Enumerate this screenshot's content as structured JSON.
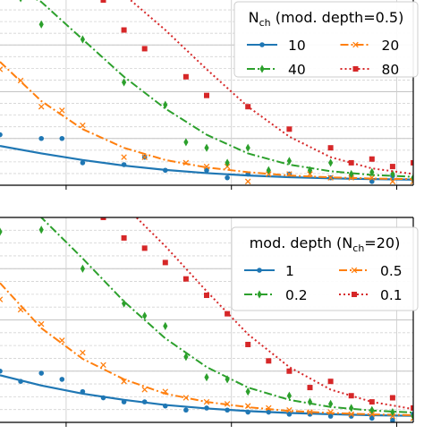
{
  "chart_data": [
    {
      "type": "line",
      "title": "",
      "xlabel": "",
      "ylabel": "",
      "xlim": [
        0,
        1
      ],
      "ylim": [
        0,
        1
      ],
      "grid": true,
      "legend": {
        "title": "N_ch (mod. depth=0.5)",
        "title_parts": {
          "base": "N",
          "sub": "ch",
          "rest": " (mod. depth=0.5)"
        },
        "placement": "top-right",
        "columns": 2
      },
      "series": [
        {
          "name": "10",
          "color": "#1f77b4",
          "line_style": "solid",
          "marker": "circle",
          "line": {
            "x": [
              0.0,
              0.1,
              0.2,
              0.3,
              0.4,
              0.5,
              0.6,
              0.7,
              0.8,
              0.9,
              1.0
            ],
            "y": [
              0.21,
              0.17,
              0.135,
              0.105,
              0.082,
              0.065,
              0.052,
              0.043,
              0.037,
              0.033,
              0.03
            ]
          },
          "points": {
            "x": [
              0.0,
              0.1,
              0.15,
              0.2,
              0.3,
              0.35,
              0.4,
              0.5,
              0.55,
              0.6,
              0.7,
              0.75,
              0.8,
              0.85,
              0.9,
              0.95,
              1.0
            ],
            "y": [
              0.27,
              0.25,
              0.25,
              0.12,
              0.11,
              0.15,
              0.08,
              0.08,
              0.04,
              0.06,
              0.06,
              -0.02,
              0.04,
              0.05,
              0.02,
              0.05,
              0.03
            ]
          }
        },
        {
          "name": "20",
          "color": "#ff7f0e",
          "line_style": "dashdot",
          "marker": "x",
          "line": {
            "x": [
              0.0,
              0.1,
              0.2,
              0.3,
              0.4,
              0.5,
              0.6,
              0.7,
              0.8,
              0.9,
              1.0
            ],
            "y": [
              0.66,
              0.45,
              0.3,
              0.2,
              0.135,
              0.095,
              0.07,
              0.052,
              0.042,
              0.036,
              0.033
            ]
          },
          "points": {
            "x": [
              0.0,
              0.05,
              0.1,
              0.15,
              0.2,
              0.3,
              0.35,
              0.45,
              0.5,
              0.55,
              0.6,
              0.65,
              0.7,
              0.75,
              0.8,
              0.85,
              0.9,
              0.95,
              1.0
            ],
            "y": [
              0.62,
              0.56,
              0.42,
              0.4,
              0.32,
              0.15,
              0.15,
              0.12,
              0.1,
              0.1,
              0.02,
              0.06,
              0.06,
              0.06,
              0.04,
              0.04,
              0.04,
              0.02,
              0.02
            ]
          }
        },
        {
          "name": "40",
          "color": "#2ca02c",
          "line_style": "dashdot",
          "marker": "thin_diamond",
          "line": {
            "x": [
              0.0,
              0.1,
              0.2,
              0.3,
              0.4,
              0.5,
              0.6,
              0.7,
              0.8,
              0.9,
              1.0
            ],
            "y": [
              1.1,
              0.98,
              0.78,
              0.58,
              0.41,
              0.27,
              0.17,
              0.11,
              0.075,
              0.055,
              0.045
            ]
          },
          "points": {
            "x": [
              0.05,
              0.1,
              0.2,
              0.3,
              0.4,
              0.45,
              0.5,
              0.55,
              0.6,
              0.65,
              0.7,
              0.75,
              0.8,
              0.85,
              0.9,
              0.95,
              1.0
            ],
            "y": [
              1.0,
              0.86,
              0.78,
              0.55,
              0.43,
              0.23,
              0.2,
              0.12,
              0.2,
              0.08,
              0.13,
              0.08,
              0.12,
              0.06,
              0.07,
              0.06,
              0.04
            ]
          }
        },
        {
          "name": "80",
          "color": "#d62728",
          "line_style": "dotted",
          "marker": "square",
          "line": {
            "x": [
              0.3,
              0.4,
              0.5,
              0.6,
              0.7,
              0.8,
              0.9,
              1.0
            ],
            "y": [
              1.02,
              0.83,
              0.62,
              0.42,
              0.26,
              0.15,
              0.09,
              0.06
            ]
          },
          "points": {
            "x": [
              0.25,
              0.3,
              0.35,
              0.45,
              0.5,
              0.6,
              0.7,
              0.8,
              0.85,
              0.9,
              0.95,
              1.0
            ],
            "y": [
              0.99,
              0.83,
              0.73,
              0.58,
              0.48,
              0.42,
              0.3,
              0.2,
              0.12,
              0.14,
              0.1,
              0.12
            ]
          }
        }
      ]
    },
    {
      "type": "line",
      "title": "",
      "xlabel": "",
      "ylabel": "",
      "xlim": [
        0,
        1
      ],
      "ylim": [
        0,
        1
      ],
      "grid": true,
      "legend": {
        "title": "mod. depth (N_ch=20)",
        "title_parts": {
          "base": "mod. depth (N",
          "sub": "ch",
          "rest": "=20)"
        },
        "placement": "top-right",
        "columns": 2
      },
      "series": [
        {
          "name": "1",
          "color": "#1f77b4",
          "line_style": "solid",
          "marker": "circle",
          "line": {
            "x": [
              0.0,
              0.1,
              0.2,
              0.3,
              0.4,
              0.5,
              0.6,
              0.7,
              0.8,
              0.9,
              1.0
            ],
            "y": [
              0.23,
              0.18,
              0.14,
              0.11,
              0.085,
              0.068,
              0.055,
              0.046,
              0.04,
              0.035,
              0.032
            ]
          },
          "points": {
            "x": [
              0.0,
              0.05,
              0.1,
              0.15,
              0.2,
              0.25,
              0.3,
              0.35,
              0.4,
              0.45,
              0.5,
              0.55,
              0.6,
              0.65,
              0.7,
              0.75,
              0.8,
              0.85,
              0.9,
              0.95,
              1.0
            ],
            "y": [
              0.25,
              0.2,
              0.24,
              0.21,
              0.15,
              0.12,
              0.1,
              0.1,
              0.08,
              0.06,
              0.07,
              0.06,
              0.05,
              0.05,
              0.04,
              0.04,
              0.03,
              0.03,
              0.02,
              0.01,
              0.04
            ]
          }
        },
        {
          "name": "0.5",
          "color": "#ff7f0e",
          "line_style": "dashdot",
          "marker": "x",
          "line": {
            "x": [
              0.0,
              0.1,
              0.2,
              0.3,
              0.4,
              0.5,
              0.6,
              0.7,
              0.8,
              0.9,
              1.0
            ],
            "y": [
              0.68,
              0.46,
              0.31,
              0.21,
              0.14,
              0.1,
              0.074,
              0.056,
              0.046,
              0.039,
              0.035
            ]
          },
          "points": {
            "x": [
              0.0,
              0.05,
              0.1,
              0.15,
              0.2,
              0.25,
              0.3,
              0.35,
              0.4,
              0.45,
              0.5,
              0.55,
              0.6,
              0.65,
              0.7,
              0.75,
              0.8,
              0.85,
              0.9,
              0.95,
              1.0
            ],
            "y": [
              0.6,
              0.55,
              0.48,
              0.4,
              0.34,
              0.28,
              0.2,
              0.16,
              0.15,
              0.12,
              0.1,
              0.09,
              0.08,
              0.07,
              0.06,
              0.05,
              0.05,
              0.04,
              0.04,
              0.03,
              0.02
            ]
          }
        },
        {
          "name": "0.2",
          "color": "#2ca02c",
          "line_style": "dashdot",
          "marker": "thin_diamond",
          "line": {
            "x": [
              0.0,
              0.1,
              0.2,
              0.3,
              0.4,
              0.5,
              0.6,
              0.7,
              0.8,
              0.9,
              1.0
            ],
            "y": [
              1.12,
              1.0,
              0.8,
              0.59,
              0.41,
              0.27,
              0.17,
              0.11,
              0.075,
              0.058,
              0.048
            ]
          },
          "points": {
            "x": [
              0.0,
              0.05,
              0.1,
              0.2,
              0.3,
              0.35,
              0.4,
              0.45,
              0.5,
              0.55,
              0.6,
              0.7,
              0.75,
              0.8,
              0.85,
              0.9,
              0.95,
              1.0
            ],
            "y": [
              0.93,
              1.02,
              0.94,
              0.75,
              0.58,
              0.52,
              0.47,
              0.32,
              0.22,
              0.21,
              0.15,
              0.13,
              0.1,
              0.09,
              0.07,
              0.06,
              0.05,
              0.03
            ]
          }
        },
        {
          "name": "0.1",
          "color": "#d62728",
          "line_style": "dotted",
          "marker": "square",
          "line": {
            "x": [
              0.3,
              0.4,
              0.5,
              0.6,
              0.7,
              0.8,
              0.9,
              1.0
            ],
            "y": [
              1.06,
              0.86,
              0.64,
              0.43,
              0.27,
              0.16,
              0.1,
              0.065
            ]
          },
          "points": {
            "x": [
              0.25,
              0.3,
              0.35,
              0.4,
              0.45,
              0.5,
              0.55,
              0.6,
              0.65,
              0.7,
              0.75,
              0.8,
              0.85,
              0.9,
              0.95,
              1.0
            ],
            "y": [
              1.0,
              0.9,
              0.85,
              0.78,
              0.7,
              0.62,
              0.53,
              0.38,
              0.3,
              0.25,
              0.17,
              0.2,
              0.13,
              0.1,
              0.12,
              0.07
            ]
          }
        }
      ]
    }
  ]
}
